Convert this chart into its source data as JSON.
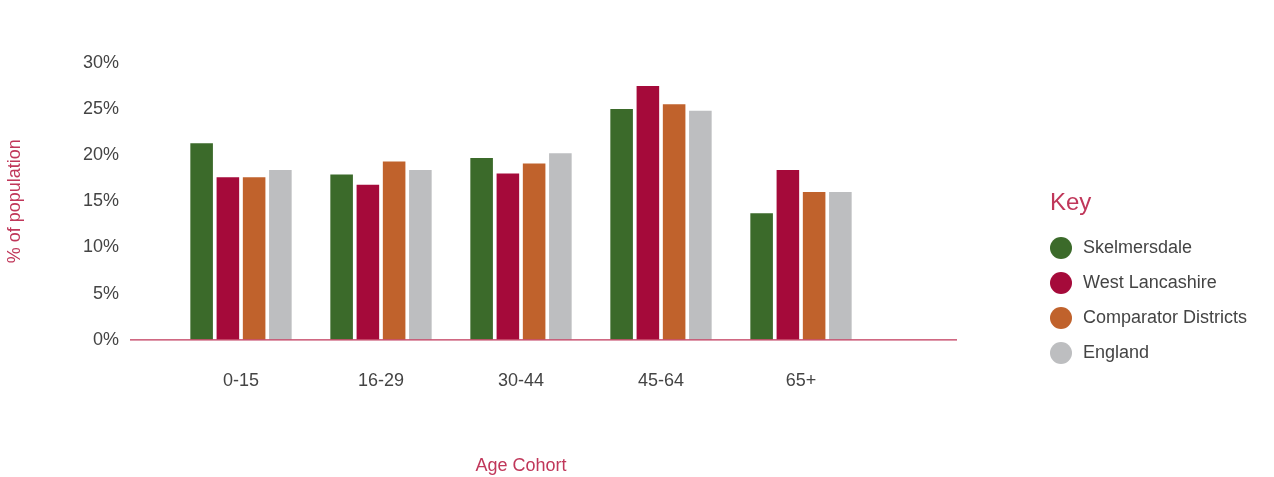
{
  "chart_data": {
    "type": "bar",
    "xlabel": "Age Cohort",
    "ylabel": "% of population",
    "legend_title": "Key",
    "legend": "right",
    "categories": [
      "0-15",
      "16-29",
      "30-44",
      "45-64",
      "65+"
    ],
    "series": [
      {
        "name": "Skelmersdale",
        "color": "#3b6a2a",
        "values": [
          21.3,
          17.9,
          19.7,
          25.0,
          13.7
        ]
      },
      {
        "name": "West Lancashire",
        "color": "#a50a3a",
        "values": [
          17.6,
          16.8,
          18.0,
          27.5,
          18.4
        ]
      },
      {
        "name": "Comparator Districts",
        "color": "#c0622c",
        "values": [
          17.6,
          19.3,
          19.1,
          25.5,
          16.0
        ]
      },
      {
        "name": "England",
        "color": "#bdbec0",
        "values": [
          18.4,
          18.4,
          20.2,
          24.8,
          16.0
        ]
      }
    ],
    "ylim": [
      0,
      30
    ],
    "yticks": [
      {
        "value": 0,
        "label": "0%"
      },
      {
        "value": 5,
        "label": "5%"
      },
      {
        "value": 10,
        "label": "10%"
      },
      {
        "value": 15,
        "label": "15%"
      },
      {
        "value": 20,
        "label": "20%"
      },
      {
        "value": 25,
        "label": "25%"
      },
      {
        "value": 30,
        "label": "30%"
      }
    ],
    "grid": false
  }
}
